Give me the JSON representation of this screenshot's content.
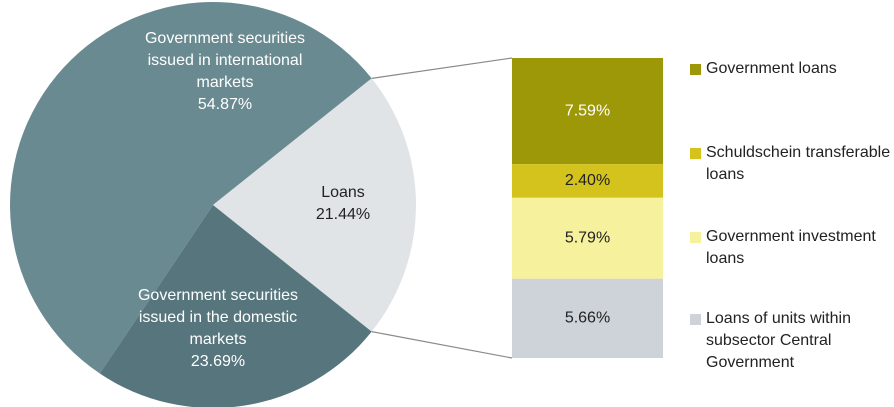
{
  "chart_data": [
    {
      "type": "pie",
      "categories": [
        "Government securities issued in international markets",
        "Loans",
        "Government securities issued in the domestic markets"
      ],
      "values": [
        54.87,
        21.44,
        23.69
      ],
      "value_labels": [
        "54.87%",
        "21.44%",
        "23.69%"
      ],
      "colors": [
        "#6a8a91",
        "#e1e4e7",
        "#56757c"
      ]
    },
    {
      "type": "bar",
      "stacked": true,
      "series": [
        {
          "name": "Government loans",
          "color": "#9c9807",
          "values": [
            7.59
          ],
          "value_labels": [
            "7.59%"
          ]
        },
        {
          "name": "Schuldschein transferable loans",
          "color": "#d3c31c",
          "values": [
            2.4
          ],
          "value_labels": [
            "2.40%"
          ]
        },
        {
          "name": "Government investment loans",
          "color": "#f6f19c",
          "values": [
            5.79
          ],
          "value_labels": [
            "5.79%"
          ]
        },
        {
          "name": "Loans of units within subsector Central Government",
          "color": "#cdd3d9",
          "values": [
            5.66
          ],
          "value_labels": [
            "5.66%"
          ]
        }
      ]
    }
  ]
}
